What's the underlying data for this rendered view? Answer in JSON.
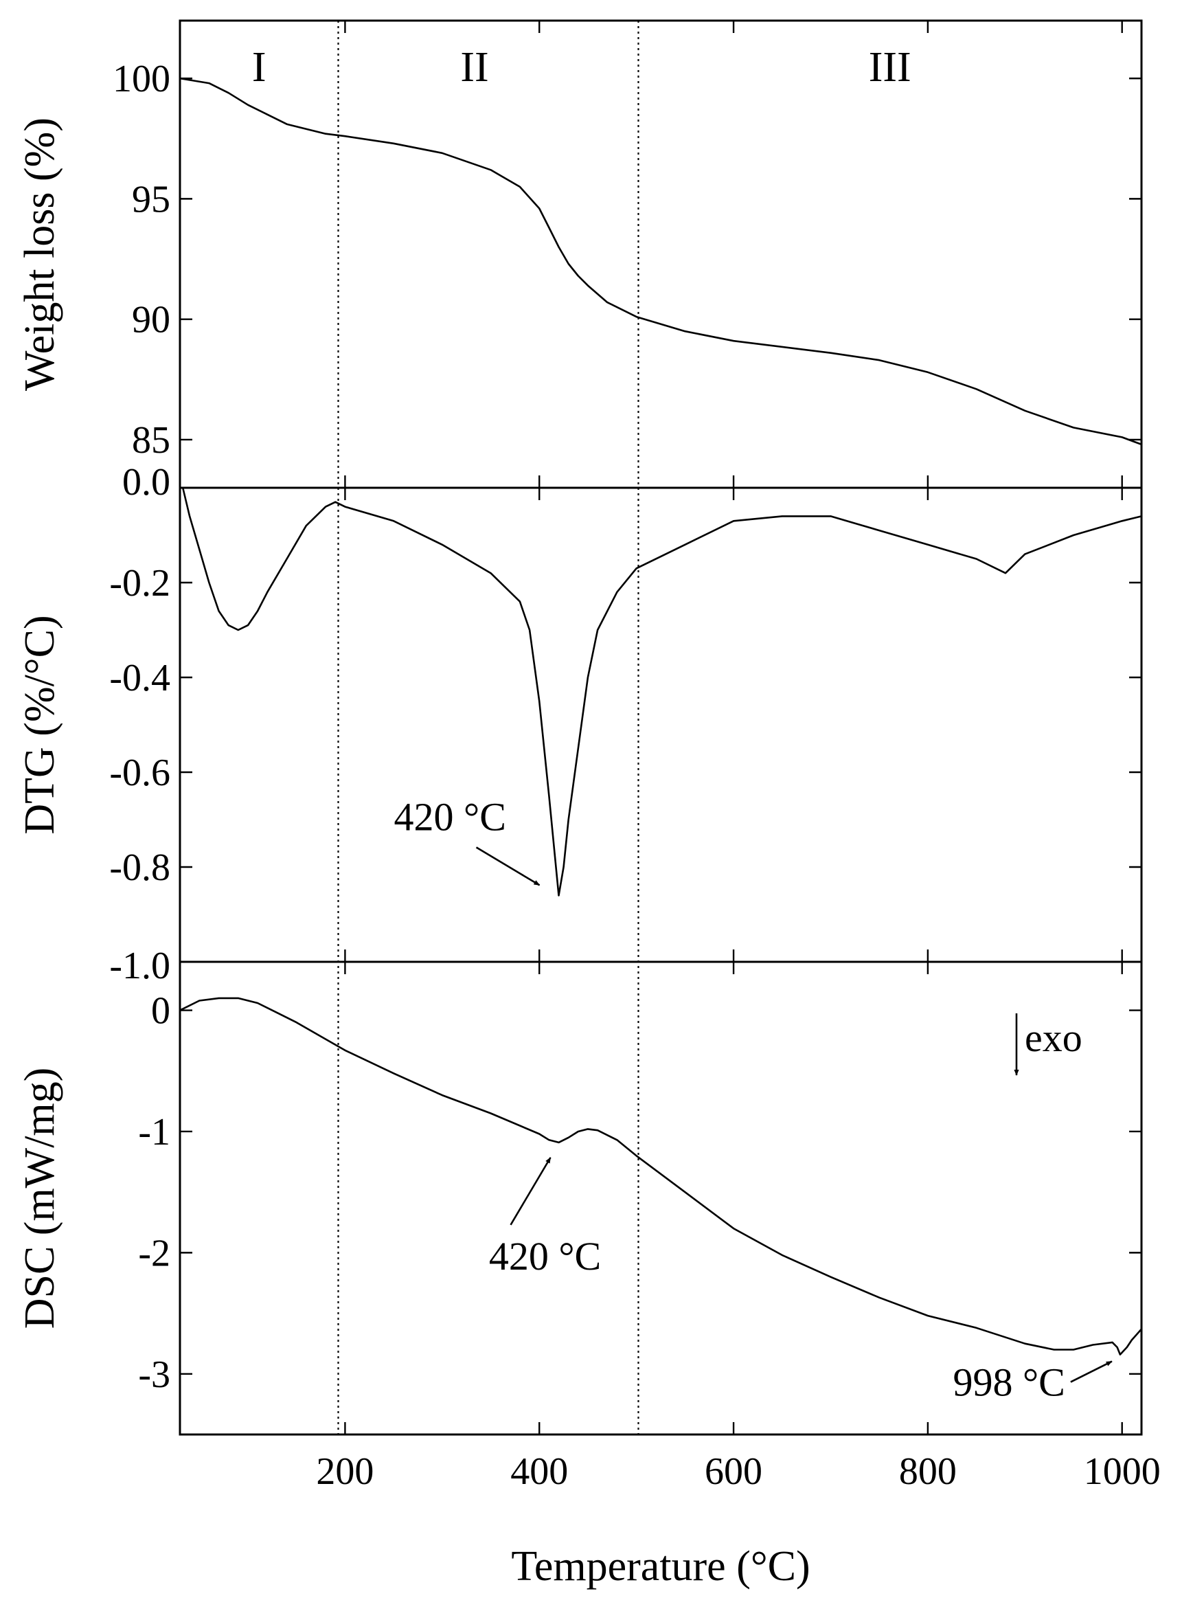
{
  "chart_data": [
    {
      "type": "line",
      "panel": "TG",
      "ylabel": "Weight loss (%)",
      "xlim": [
        30,
        1020
      ],
      "ylim": [
        83,
        102.4
      ],
      "yticks": [
        85,
        90,
        95,
        100
      ],
      "x": [
        30,
        60,
        80,
        100,
        120,
        140,
        160,
        180,
        200,
        250,
        300,
        350,
        380,
        400,
        410,
        420,
        430,
        440,
        450,
        470,
        500,
        550,
        600,
        700,
        750,
        800,
        850,
        900,
        950,
        1000,
        1020
      ],
      "values": [
        100.0,
        99.8,
        99.4,
        98.9,
        98.5,
        98.1,
        97.9,
        97.7,
        97.6,
        97.3,
        96.9,
        96.2,
        95.5,
        94.6,
        93.8,
        93.0,
        92.3,
        91.8,
        91.4,
        90.7,
        90.1,
        89.5,
        89.1,
        88.6,
        88.3,
        87.8,
        87.1,
        86.2,
        85.5,
        85.1,
        84.8
      ]
    },
    {
      "type": "line",
      "panel": "DTG",
      "ylabel": "DTG (%/°C)",
      "xlim": [
        30,
        1020
      ],
      "ylim": [
        -1.0,
        0.0
      ],
      "yticks": [
        0.0,
        -0.2,
        -0.4,
        -0.6,
        -0.8,
        -1.0
      ],
      "x": [
        33,
        40,
        50,
        60,
        70,
        80,
        90,
        100,
        110,
        120,
        140,
        160,
        180,
        190,
        200,
        250,
        300,
        350,
        380,
        390,
        400,
        410,
        420,
        425,
        430,
        440,
        450,
        460,
        480,
        500,
        550,
        600,
        650,
        700,
        750,
        800,
        850,
        880,
        900,
        950,
        1000,
        1020
      ],
      "values": [
        0.0,
        -0.06,
        -0.13,
        -0.2,
        -0.26,
        -0.29,
        -0.3,
        -0.29,
        -0.26,
        -0.22,
        -0.15,
        -0.08,
        -0.04,
        -0.03,
        -0.04,
        -0.07,
        -0.12,
        -0.18,
        -0.24,
        -0.3,
        -0.45,
        -0.65,
        -0.86,
        -0.8,
        -0.7,
        -0.55,
        -0.4,
        -0.3,
        -0.22,
        -0.17,
        -0.12,
        -0.07,
        -0.06,
        -0.06,
        -0.09,
        -0.12,
        -0.15,
        -0.18,
        -0.14,
        -0.1,
        -0.07,
        -0.06
      ],
      "annotations": [
        {
          "text": "420 °C",
          "x": 420,
          "y": -0.86
        }
      ]
    },
    {
      "type": "line",
      "panel": "DSC",
      "ylabel": "DSC (mW/mg)",
      "xlabel": "Temperature (°C)",
      "xlim": [
        30,
        1020
      ],
      "ylim": [
        -3.5,
        0.4
      ],
      "yticks": [
        0,
        -1,
        -2,
        -3
      ],
      "xticks": [
        200,
        400,
        600,
        800,
        1000
      ],
      "x": [
        30,
        50,
        70,
        90,
        110,
        130,
        150,
        200,
        250,
        300,
        350,
        400,
        410,
        420,
        430,
        440,
        450,
        460,
        480,
        500,
        550,
        600,
        650,
        700,
        750,
        800,
        850,
        900,
        930,
        950,
        970,
        990,
        995,
        998,
        1005,
        1010,
        1020
      ],
      "values": [
        0.0,
        0.08,
        0.1,
        0.1,
        0.06,
        -0.02,
        -0.1,
        -0.33,
        -0.52,
        -0.7,
        -0.85,
        -1.02,
        -1.07,
        -1.09,
        -1.05,
        -1.0,
        -0.98,
        -0.99,
        -1.07,
        -1.2,
        -1.5,
        -1.8,
        -2.02,
        -2.2,
        -2.37,
        -2.52,
        -2.62,
        -2.75,
        -2.8,
        -2.8,
        -2.76,
        -2.74,
        -2.78,
        -2.84,
        -2.78,
        -2.72,
        -2.63
      ],
      "annotations": [
        {
          "text": "420 °C",
          "x": 420,
          "y": -1.09
        },
        {
          "text": "998 °C",
          "x": 998,
          "y": -2.84
        },
        {
          "text": "exo"
        }
      ]
    }
  ],
  "regions": [
    "I",
    "II",
    "III"
  ],
  "region_boundaries": [
    193,
    502
  ]
}
